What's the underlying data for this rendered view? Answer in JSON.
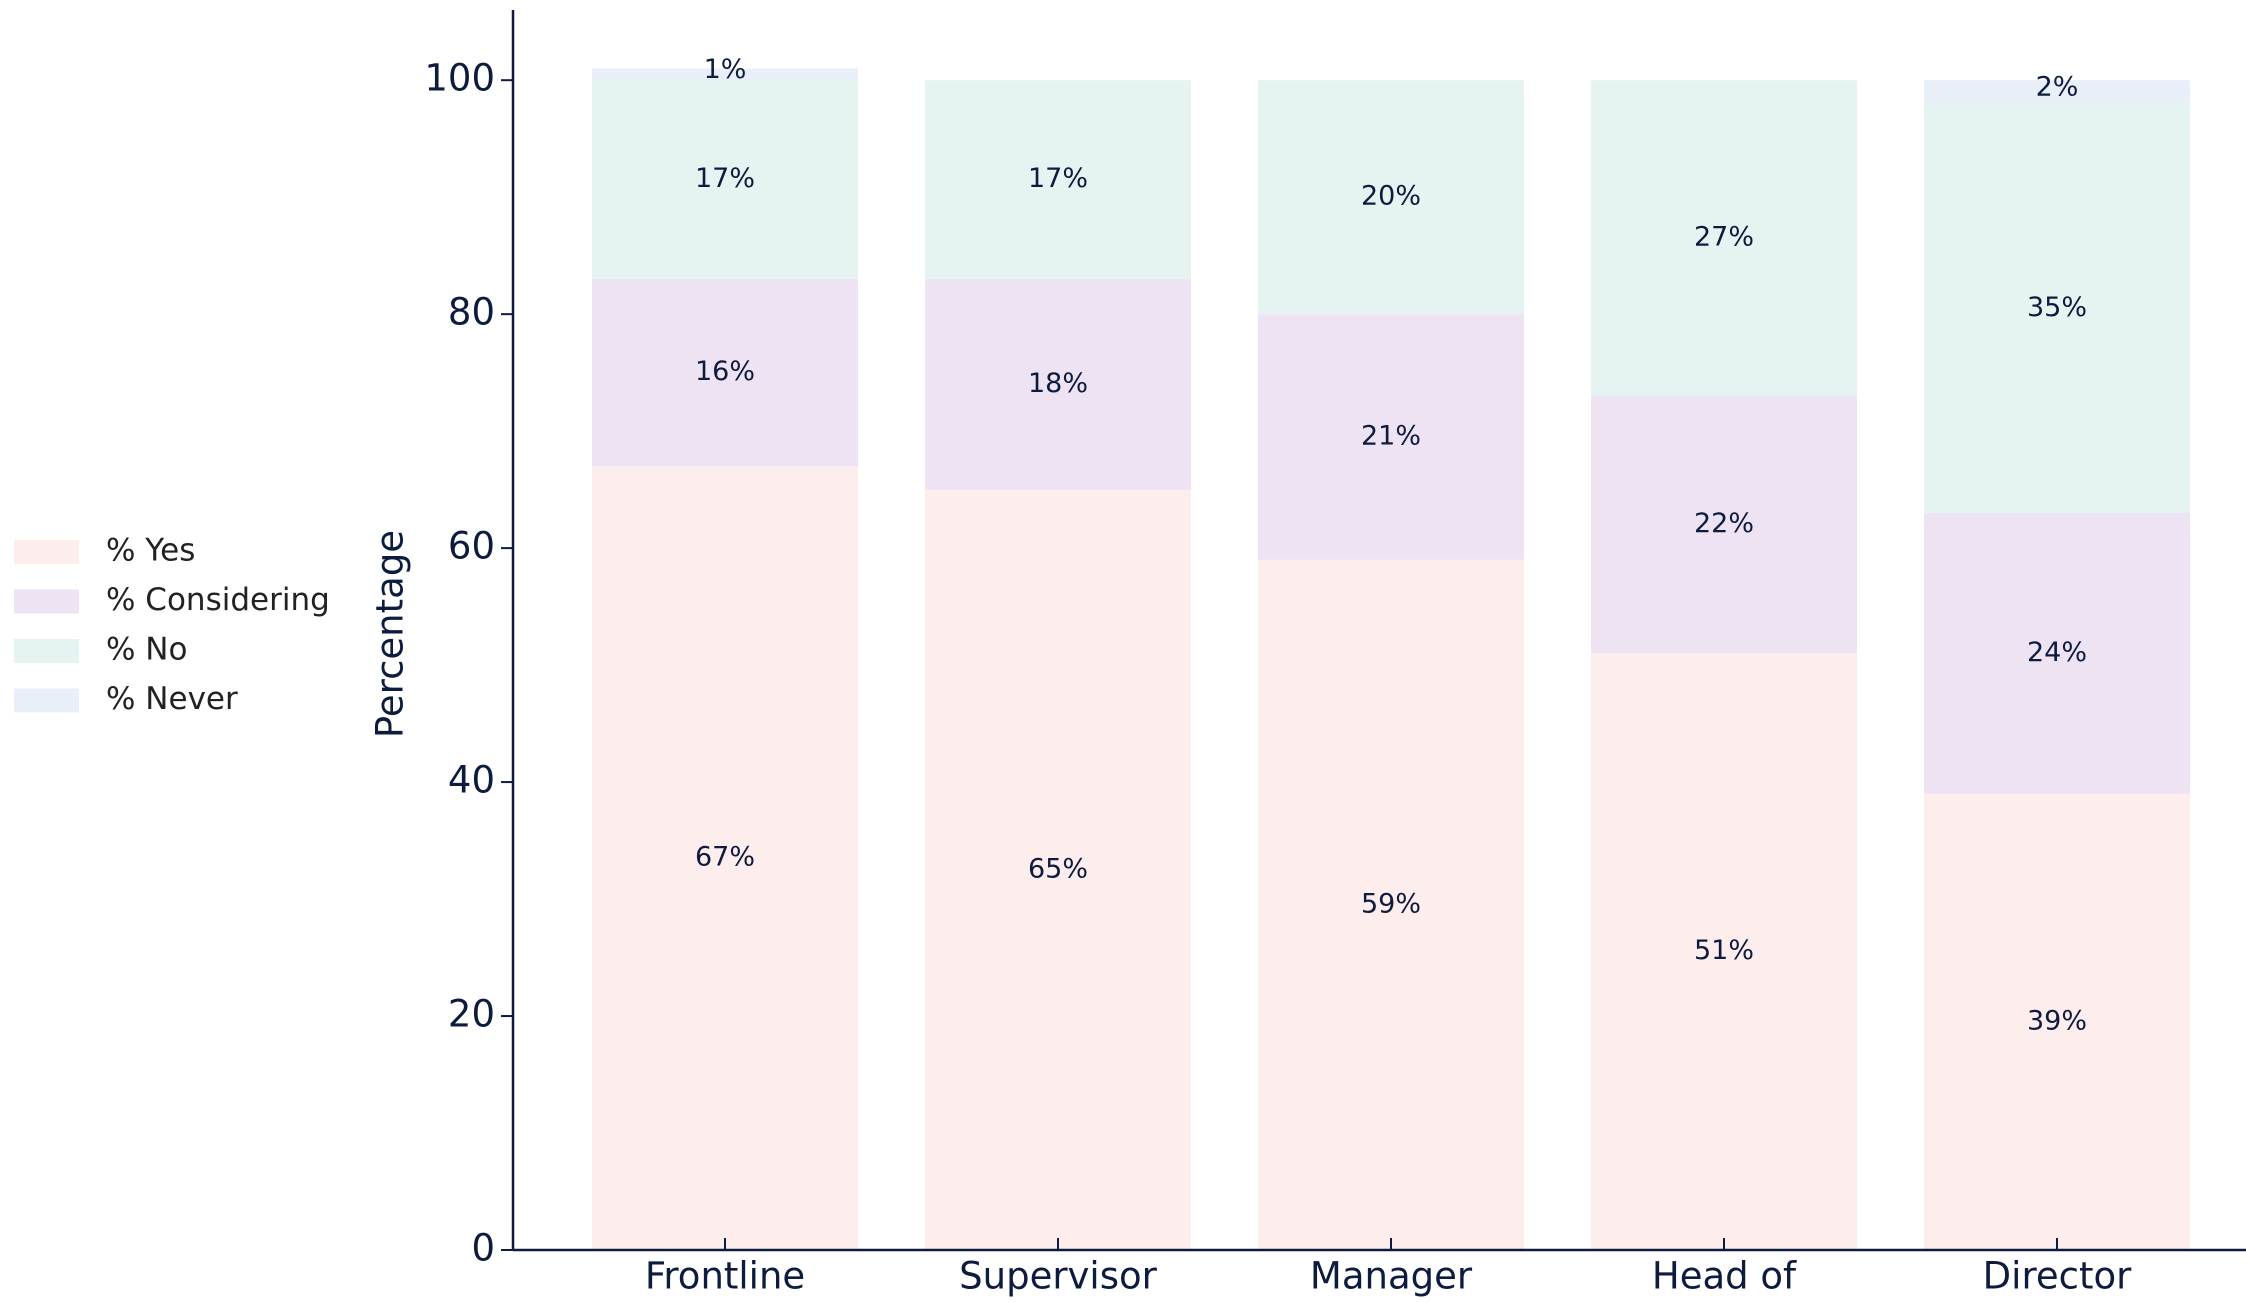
{
  "chart_data": {
    "type": "stacked-bar",
    "y_label": "Percentage",
    "categories": [
      "Frontline",
      "Supervisor",
      "Manager",
      "Head of",
      "Director"
    ],
    "series": [
      {
        "name": "% Yes",
        "color": "#fdeeed",
        "values": [
          67,
          65,
          59,
          51,
          39
        ],
        "value_labels": [
          "67%",
          "65%",
          "59%",
          "51%",
          "39%"
        ]
      },
      {
        "name": "% Considering",
        "color": "#ede3f2",
        "values": [
          16,
          18,
          21,
          22,
          24
        ],
        "value_labels": [
          "16%",
          "18%",
          "21%",
          "22%",
          "24%"
        ]
      },
      {
        "name": "% No",
        "color": "#e6f4f1",
        "values": [
          17,
          17,
          20,
          27,
          35
        ],
        "value_labels": [
          "17%",
          "17%",
          "20%",
          "27%",
          "35%"
        ]
      },
      {
        "name": "% Never",
        "color": "#e8eff8",
        "values": [
          1,
          0,
          0,
          0,
          2
        ],
        "value_labels": [
          "1%",
          null,
          null,
          null,
          "2%"
        ]
      }
    ],
    "ylim": [
      0,
      106
    ],
    "yticks": [
      0,
      20,
      40,
      60,
      80,
      100
    ],
    "grid": false,
    "legend": "left"
  }
}
